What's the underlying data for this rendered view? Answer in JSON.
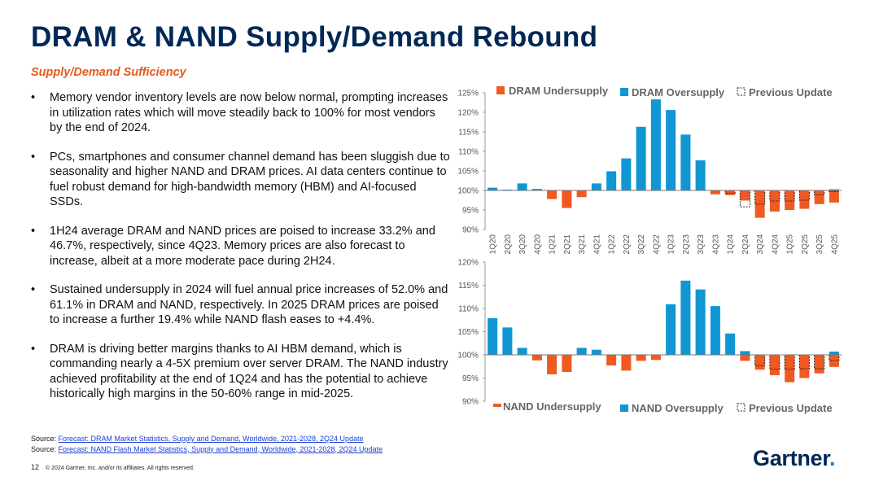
{
  "title": "DRAM & NAND Supply/Demand Rebound",
  "subtitle": "Supply/Demand Sufficiency",
  "bullets": [
    "Memory vendor inventory levels are now below normal, prompting increases in utilization rates which will move steadily back to 100% for most vendors by the end of 2024.",
    "PCs, smartphones and consumer channel demand has been sluggish due to seasonality and higher NAND and DRAM prices. AI data centers continue to fuel robust demand for high-bandwidth memory (HBM) and AI-focused SSDs.",
    "1H24 average DRAM and NAND prices are poised to increase 33.2% and 46.7%, respectively, since 4Q23. Memory prices are also forecast to increase, albeit at a more moderate pace during 2H24.",
    "Sustained undersupply in 2024 will fuel annual price increases of 52.0% and 61.1% in DRAM and NAND, respectively. In 2025 DRAM prices are poised to increase a further 19.4% while NAND flash eases to +4.4%.",
    "DRAM is driving better margins thanks to AI HBM demand, which is commanding nearly a 4-5X premium over server DRAM. The NAND industry achieved profitability at the end of 1Q24 and has the potential to achieve historically high margins in the 50-60% range in mid-2025."
  ],
  "sources": {
    "label": "Source:",
    "line1": "Forecast: DRAM Market Statistics, Supply and Demand, Worldwide, 2021-2028, 2Q24 Update",
    "line2": "Forecast: NAND Flash Market Statistics, Supply and Demand, Worldwide, 2021-2028, 2Q24 Update"
  },
  "footer": {
    "page": "12",
    "copyright": "© 2024 Gartner, Inc. and/or its affiliates. All rights reserved."
  },
  "brand": {
    "name": "Gartner",
    "dot": "."
  },
  "colors": {
    "title": "#002856",
    "accent": "#e35a1c",
    "under": "#f05a22",
    "over": "#1196d4"
  },
  "chart_data": [
    {
      "type": "bar",
      "categories": [
        "1Q20",
        "2Q20",
        "3Q20",
        "4Q20",
        "1Q21",
        "2Q21",
        "3Q21",
        "4Q21",
        "1Q22",
        "2Q22",
        "3Q22",
        "4Q22",
        "1Q23",
        "2Q23",
        "3Q23",
        "4Q23",
        "1Q24",
        "2Q24",
        "3Q24",
        "4Q24",
        "1Q25",
        "2Q25",
        "3Q25",
        "4Q25"
      ],
      "series": [
        {
          "name": "DRAM Undersupply",
          "values": [
            null,
            null,
            null,
            null,
            97.8,
            95.5,
            98.3,
            null,
            null,
            null,
            null,
            null,
            null,
            null,
            null,
            99.0,
            98.8,
            97.4,
            93.0,
            94.6,
            95.0,
            95.3,
            96.5,
            96.9
          ]
        },
        {
          "name": "DRAM Oversupply",
          "values": [
            100.7,
            100.2,
            101.8,
            100.4,
            null,
            null,
            null,
            101.8,
            104.9,
            108.2,
            116.3,
            123.3,
            120.6,
            114.3,
            107.7,
            null,
            null,
            null,
            null,
            null,
            null,
            null,
            null,
            100.3
          ]
        },
        {
          "name": "Previous Update",
          "values": [
            null,
            null,
            null,
            null,
            null,
            null,
            null,
            null,
            null,
            null,
            null,
            null,
            null,
            null,
            null,
            null,
            99.3,
            95.8,
            96.5,
            97.3,
            97.3,
            97.5,
            98.9,
            99.7
          ]
        }
      ],
      "yticks": [
        "90%",
        "95%",
        "100%",
        "105%",
        "110%",
        "115%",
        "120%",
        "125%"
      ],
      "ylim": [
        90,
        125
      ],
      "baseline": 100,
      "legend": "top"
    },
    {
      "type": "bar",
      "categories": [
        "1Q20",
        "2Q20",
        "3Q20",
        "4Q20",
        "1Q21",
        "2Q21",
        "3Q21",
        "4Q21",
        "1Q22",
        "2Q22",
        "3Q22",
        "4Q22",
        "1Q23",
        "2Q23",
        "3Q23",
        "4Q23",
        "1Q24",
        "2Q24",
        "3Q24",
        "4Q24",
        "1Q25",
        "2Q25",
        "3Q25",
        "4Q25"
      ],
      "series": [
        {
          "name": "NAND Undersupply",
          "values": [
            null,
            null,
            null,
            98.8,
            95.8,
            96.3,
            null,
            null,
            97.7,
            96.6,
            98.7,
            98.9,
            null,
            null,
            null,
            null,
            null,
            98.7,
            96.8,
            95.6,
            94.1,
            95.0,
            96.0,
            97.4
          ]
        },
        {
          "name": "NAND Oversupply",
          "values": [
            107.9,
            105.9,
            101.5,
            null,
            null,
            null,
            101.5,
            101.1,
            null,
            null,
            null,
            null,
            110.9,
            116.0,
            114.1,
            110.5,
            104.6,
            100.8,
            null,
            null,
            null,
            null,
            null,
            100.7
          ]
        },
        {
          "name": "Previous Update",
          "values": [
            null,
            null,
            null,
            null,
            null,
            null,
            null,
            null,
            null,
            null,
            null,
            null,
            null,
            null,
            null,
            null,
            null,
            null,
            97.7,
            96.9,
            96.9,
            97.0,
            97.0,
            98.8
          ]
        }
      ],
      "yticks": [
        "90%",
        "95%",
        "100%",
        "105%",
        "110%",
        "115%",
        "120%"
      ],
      "ylim": [
        90,
        120
      ],
      "baseline": 100,
      "legend": "bottom"
    }
  ]
}
